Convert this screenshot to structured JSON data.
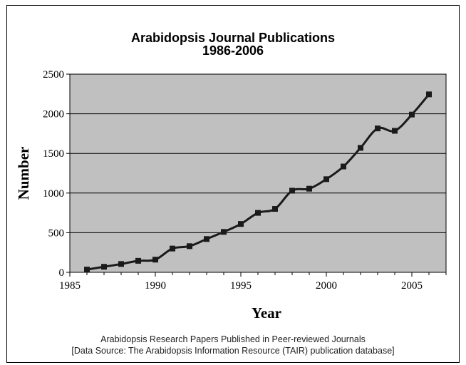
{
  "chart_data": {
    "type": "line",
    "title": "Arabidopsis Journal Publications",
    "subtitle": "1986-2006",
    "xlabel": "Year",
    "ylabel": "Number",
    "xlim": [
      1985,
      2007
    ],
    "ylim": [
      0,
      2500
    ],
    "x_ticks": [
      1985,
      1990,
      1995,
      2000,
      2005
    ],
    "y_ticks": [
      0,
      500,
      1000,
      1500,
      2000,
      2500
    ],
    "grid": true,
    "plot_background": "#c0c0c0",
    "line_color": "#1a1a1a",
    "marker": "square",
    "series": [
      {
        "x": [
          1986,
          1987,
          1988,
          1989,
          1990,
          1991,
          1992,
          1993,
          1994,
          1995,
          1996,
          1997,
          1998,
          1999,
          2000,
          2001,
          2002,
          2003,
          2004,
          2005,
          2006
        ],
        "values": [
          35,
          70,
          105,
          145,
          160,
          300,
          330,
          420,
          510,
          610,
          750,
          800,
          1030,
          1055,
          1175,
          1335,
          1570,
          1815,
          1785,
          1990,
          2245
        ]
      }
    ]
  },
  "caption": {
    "line1": "Arabidopsis Research Papers Published in Peer-reviewed Journals",
    "line2": "[Data Source: The Arabidopsis Information Resource (TAIR) publication database]"
  }
}
